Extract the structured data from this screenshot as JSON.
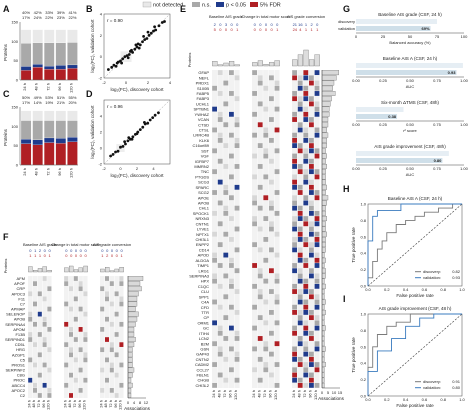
{
  "legend": {
    "items": [
      {
        "label": "not detected",
        "color": "#e9e9e9"
      },
      {
        "label": "n.s.",
        "color": "#a9a9a9"
      },
      {
        "label": "p < 0.05",
        "color": "#1f3b8c"
      },
      {
        "label": "5% FDR",
        "color": "#b01f24"
      }
    ]
  },
  "panel_labels": [
    "A",
    "B",
    "C",
    "D",
    "E",
    "F",
    "G",
    "H",
    "I"
  ],
  "colors": {
    "not_detected": "#e9e9e9",
    "ns": "#a9a9a9",
    "p05": "#1f3b8c",
    "fdr": "#b01f24",
    "grid": "#f2f2f2"
  },
  "A": {
    "ylabel": "Proteins",
    "yticks": [
      "0",
      "50",
      "100",
      "150"
    ],
    "categories": [
      "24 h",
      "48 h",
      "72 h",
      "96 h",
      "120 h"
    ],
    "pct_top": [
      "40%",
      "42%",
      "33%",
      "39%",
      "41%"
    ],
    "pct_bottom": [
      "17%",
      "24%",
      "22%",
      "23%",
      "22%"
    ],
    "ymax": 150,
    "stacks": [
      {
        "fdr": 25,
        "p05": 10,
        "ns": 60,
        "nd": 35
      },
      {
        "fdr": 33,
        "p05": 8,
        "ns": 55,
        "nd": 34
      },
      {
        "fdr": 28,
        "p05": 8,
        "ns": 60,
        "nd": 34
      },
      {
        "fdr": 28,
        "p05": 10,
        "ns": 58,
        "nd": 34
      },
      {
        "fdr": 30,
        "p05": 9,
        "ns": 58,
        "nd": 33
      }
    ]
  },
  "C": {
    "ylabel": "Proteins",
    "yticks": [
      "0",
      "50",
      "100",
      "150"
    ],
    "categories": [
      "24 h",
      "48 h",
      "72 h",
      "96 h",
      "120 h"
    ],
    "pct_top": [
      "50%",
      "49%",
      "53%",
      "51%",
      "55%"
    ],
    "pct_bottom": [
      "17%",
      "14%",
      "19%",
      "21%",
      "20%"
    ],
    "ymax": 150,
    "stacks": [
      {
        "fdr": 55,
        "p05": 12,
        "ns": 48,
        "nd": 25
      },
      {
        "fdr": 52,
        "p05": 13,
        "ns": 50,
        "nd": 25
      },
      {
        "fdr": 58,
        "p05": 12,
        "ns": 45,
        "nd": 25
      },
      {
        "fdr": 56,
        "p05": 13,
        "ns": 46,
        "nd": 25
      },
      {
        "fdr": 60,
        "p05": 12,
        "ns": 43,
        "nd": 25
      }
    ]
  },
  "B": {
    "r_label": "r = 0.90",
    "xlabel": "log₂(FC), discovery cohort",
    "ylabel": "log₂(FC), validation cohort",
    "xlim": [
      -2,
      4
    ],
    "ylim": [
      -2,
      4
    ],
    "ticks": [
      "-2",
      "0",
      "2",
      "4"
    ],
    "points": [
      [
        -1.6,
        -1.2
      ],
      [
        -1.3,
        -1.0
      ],
      [
        -1.1,
        -0.8
      ],
      [
        -0.9,
        -0.9
      ],
      [
        -0.7,
        -0.5
      ],
      [
        -0.5,
        -0.4
      ],
      [
        -0.3,
        -0.2
      ],
      [
        -0.1,
        0.0
      ],
      [
        0.1,
        0.1
      ],
      [
        0.3,
        0.2
      ],
      [
        0.4,
        0.5
      ],
      [
        0.6,
        0.4
      ],
      [
        0.8,
        0.7
      ],
      [
        1.0,
        0.9
      ],
      [
        1.1,
        1.2
      ],
      [
        1.3,
        1.1
      ],
      [
        1.5,
        1.4
      ],
      [
        1.7,
        1.6
      ],
      [
        1.9,
        1.7
      ],
      [
        2.1,
        2.0
      ],
      [
        2.3,
        2.2
      ],
      [
        2.5,
        2.4
      ],
      [
        2.7,
        2.5
      ],
      [
        3.0,
        2.9
      ],
      [
        3.3,
        3.2
      ],
      [
        0.2,
        -0.1
      ],
      [
        0.5,
        0.6
      ],
      [
        0.9,
        1.1
      ],
      [
        1.2,
        0.8
      ],
      [
        1.6,
        1.9
      ],
      [
        -0.4,
        -0.6
      ],
      [
        -0.8,
        -0.6
      ],
      [
        2.0,
        2.3
      ],
      [
        2.6,
        2.8
      ],
      [
        3.5,
        3.3
      ]
    ]
  },
  "D": {
    "r_label": "r = 0.96",
    "xlabel": "log₂(FC), discovery cohort",
    "ylabel": "log₂(FC), validation cohort",
    "xlim": [
      -2,
      6
    ],
    "ylim": [
      -2,
      6
    ],
    "ticks": [
      "-2",
      "0",
      "2",
      "4"
    ],
    "points": [
      [
        -1.2,
        -1.0
      ],
      [
        -0.9,
        -0.8
      ],
      [
        -0.6,
        -0.5
      ],
      [
        -0.3,
        -0.4
      ],
      [
        0.0,
        0.1
      ],
      [
        0.3,
        0.2
      ],
      [
        0.6,
        0.5
      ],
      [
        0.9,
        0.9
      ],
      [
        1.2,
        1.1
      ],
      [
        1.5,
        1.4
      ],
      [
        1.8,
        1.7
      ],
      [
        2.1,
        2.0
      ],
      [
        2.4,
        2.3
      ],
      [
        2.7,
        2.6
      ],
      [
        3.0,
        3.0
      ],
      [
        3.3,
        3.1
      ],
      [
        3.6,
        3.5
      ],
      [
        3.9,
        3.8
      ],
      [
        4.2,
        4.1
      ],
      [
        4.6,
        4.4
      ],
      [
        1.0,
        1.3
      ],
      [
        2.0,
        1.8
      ],
      [
        2.9,
        3.2
      ],
      [
        1.4,
        1.1
      ],
      [
        0.5,
        0.8
      ]
    ]
  },
  "E": {
    "ylabel": "Proteins",
    "xlabel": "Associations",
    "groups": [
      {
        "title": "Baseline AIS grade",
        "counts_top": [
          "2",
          "0",
          "3",
          "0",
          "0"
        ],
        "counts_bottom": [
          "5",
          "0",
          "0",
          "0",
          "1"
        ]
      },
      {
        "title": "Change in total motor score",
        "counts_top": [
          "0",
          "0",
          "0",
          "0",
          "0"
        ],
        "counts_bottom": [
          "0",
          "0",
          "0",
          "0",
          "1"
        ]
      },
      {
        "title": "AIS grade conversion",
        "counts_top": [
          "21",
          "16",
          "1",
          "2",
          "0"
        ],
        "counts_bottom": [
          "24",
          "4",
          "1",
          "1",
          "1"
        ]
      }
    ],
    "timepoints": [
      "24 h",
      "48 h",
      "72 h",
      "96 h",
      "120 h"
    ],
    "assoc_ticks": [
      "0",
      "5",
      "10",
      "15"
    ],
    "proteins": [
      "GFAP",
      "NEFL",
      "PRDX1",
      "S100B",
      "FABP5",
      "FABP3",
      "UCHL1",
      "SPTBN1",
      "YWHAZ",
      "VCAN",
      "CTSD",
      "CTSL",
      "LRRC4B",
      "KLK6",
      "C16orf89",
      "SST",
      "VGF",
      "IGFBP7",
      "MMRN2",
      "TNC",
      "PTGDS",
      "SCG3",
      "SPARC",
      "SCG2",
      "APOE",
      "APOB",
      "CHL1",
      "SPOCK1",
      "NRXN3",
      "CNTN1",
      "LYVE1",
      "NPTX1",
      "CHI3L1",
      "ENPP2",
      "CD14",
      "APOD",
      "ALDOA",
      "TIMP1",
      "LRG1",
      "SERPINA3",
      "HPX",
      "C1QC",
      "CLU",
      "SPP1",
      "C4A",
      "CFD",
      "TTR",
      "CP",
      "ORM1",
      "GC",
      "ITIH4",
      "LCN2",
      "B2M",
      "GSN",
      "GAP43",
      "CNTN2",
      "CADM2",
      "CCL27",
      "FBLN1",
      "CHGB",
      "CHI3L2"
    ],
    "assoc": [
      14,
      12,
      10,
      9,
      11,
      8,
      7,
      6,
      6,
      5,
      5,
      4,
      5,
      4,
      4,
      3,
      4,
      3,
      4,
      3,
      3,
      3,
      4,
      3,
      5,
      4,
      3,
      3,
      4,
      3,
      3,
      4,
      3,
      3,
      3,
      2,
      3,
      2,
      3,
      3,
      2,
      3,
      2,
      2,
      3,
      2,
      3,
      2,
      2,
      3,
      2,
      2,
      2,
      3,
      2,
      2,
      3,
      2,
      2,
      2,
      2
    ]
  },
  "F": {
    "ylabel": "Proteins",
    "xlabel": "Associations",
    "groups": [
      {
        "title": "Baseline AIS grade",
        "counts_top": [
          "0",
          "1",
          "2",
          "0",
          "0"
        ],
        "counts_bottom": [
          "1",
          "1",
          "1",
          "0",
          "1"
        ]
      },
      {
        "title": "Change in total motor score",
        "counts_top": [
          "0",
          "0",
          "0",
          "0",
          "0"
        ],
        "counts_bottom": [
          "0",
          "0",
          "0",
          "0",
          "0"
        ]
      },
      {
        "title": "AIS grade conversion",
        "counts_top": [
          "0",
          "0",
          "0",
          "0",
          "0"
        ],
        "counts_bottom": [
          "1",
          "2",
          "0",
          "0",
          "1"
        ]
      }
    ],
    "timepoints": [
      "24 h",
      "48 h",
      "72 h",
      "96 h",
      "120 h"
    ],
    "assoc_ticks": [
      "0",
      "4",
      "8",
      "12"
    ],
    "hist_ticks": [
      "0",
      "20",
      "40"
    ],
    "proteins": [
      "AFM",
      "APOF",
      "CRP",
      "APOC3",
      "F11",
      "C7",
      "APMAP",
      "SELENOP",
      "APOB",
      "SERPINA4",
      "APOM",
      "F13B",
      "SERPIND1",
      "CD5L",
      "HRG",
      "AZGP1",
      "C5",
      "PROS1",
      "SERPINF2",
      "C8G",
      "PROC",
      "ABCC4",
      "APOC2",
      "C2"
    ],
    "assoc": [
      10,
      8,
      9,
      7,
      6,
      6,
      5,
      7,
      6,
      5,
      4,
      4,
      5,
      4,
      3,
      3,
      3,
      3,
      4,
      3,
      2,
      3,
      2,
      2
    ]
  },
  "G": {
    "sections": [
      {
        "title": "Baseline AIS grade (CSF, 24 h)",
        "disc_label": "discovery",
        "val_label": "validation",
        "value_text": "69%",
        "value": 0.69,
        "axis_label": "Balanced accuracy (%)",
        "ticks": [
          "0",
          "25",
          "50",
          "75",
          "100"
        ]
      },
      {
        "title": "Baseline AIS A (CSF, 24 h)",
        "value_text": "0.93",
        "value": 0.93,
        "axis_label": "AUC",
        "ticks": [
          "0.00",
          "0.25",
          "0.50",
          "0.75",
          "1.00"
        ]
      },
      {
        "title": "Six-month ΔTMS (CSF, 48h)",
        "value_text": "0.38",
        "value": 0.38,
        "axis_label": "r² score",
        "ticks": [
          "0.00",
          "0.25",
          "0.50",
          "0.75",
          "1.00"
        ]
      },
      {
        "title": "AIS grade improvement (CSF, 48h)",
        "value_text": "0.80",
        "value": 0.8,
        "axis_label": "AUC",
        "ticks": [
          "0.00",
          "0.25",
          "0.50",
          "0.75",
          "1.00"
        ]
      }
    ]
  },
  "H": {
    "title": "Baseline AIS A (CSF, 24 h)",
    "xlabel": "False positive rate",
    "ylabel": "True positive rate",
    "ticks": [
      "0.0",
      "0.2",
      "0.4",
      "0.6",
      "0.8",
      "1.0"
    ],
    "legend": [
      {
        "label": "discovery:",
        "value": "0.82",
        "color": "#7a7a7a"
      },
      {
        "label": "validation:",
        "value": "0.93",
        "color": "#3a7bbf"
      }
    ],
    "curves": {
      "discovery": [
        [
          0,
          0
        ],
        [
          0,
          0.1
        ],
        [
          0.05,
          0.1
        ],
        [
          0.05,
          0.3
        ],
        [
          0.1,
          0.3
        ],
        [
          0.1,
          0.45
        ],
        [
          0.15,
          0.45
        ],
        [
          0.15,
          0.55
        ],
        [
          0.2,
          0.55
        ],
        [
          0.2,
          0.65
        ],
        [
          0.3,
          0.65
        ],
        [
          0.3,
          0.75
        ],
        [
          0.4,
          0.75
        ],
        [
          0.4,
          0.8
        ],
        [
          0.5,
          0.8
        ],
        [
          0.5,
          0.85
        ],
        [
          0.6,
          0.85
        ],
        [
          0.6,
          0.9
        ],
        [
          0.75,
          0.9
        ],
        [
          0.75,
          0.95
        ],
        [
          0.9,
          0.95
        ],
        [
          0.9,
          1
        ],
        [
          1,
          1
        ]
      ],
      "validation": [
        [
          0,
          0
        ],
        [
          0,
          0.55
        ],
        [
          0.05,
          0.55
        ],
        [
          0.05,
          0.85
        ],
        [
          0.1,
          0.85
        ],
        [
          0.1,
          0.92
        ],
        [
          0.35,
          0.92
        ],
        [
          0.35,
          1
        ],
        [
          1,
          1
        ]
      ]
    }
  },
  "I": {
    "title": "AIS grade improvement (CSF, 48 h)",
    "xlabel": "False positive rate",
    "ylabel": "True positive rate",
    "ticks": [
      "0.0",
      "0.2",
      "0.4",
      "0.6",
      "0.8",
      "1.0"
    ],
    "legend": [
      {
        "label": "discovery:",
        "value": "0.91",
        "color": "#7a7a7a"
      },
      {
        "label": "validation:",
        "value": "0.80",
        "color": "#3a7bbf"
      }
    ],
    "curves": {
      "discovery": [
        [
          0,
          0
        ],
        [
          0,
          0.35
        ],
        [
          0.05,
          0.35
        ],
        [
          0.05,
          0.6
        ],
        [
          0.1,
          0.6
        ],
        [
          0.1,
          0.75
        ],
        [
          0.2,
          0.75
        ],
        [
          0.2,
          0.85
        ],
        [
          0.3,
          0.85
        ],
        [
          0.3,
          0.9
        ],
        [
          0.45,
          0.9
        ],
        [
          0.45,
          1
        ],
        [
          1,
          1
        ]
      ],
      "validation": [
        [
          0,
          0
        ],
        [
          0,
          0.3
        ],
        [
          0.1,
          0.3
        ],
        [
          0.1,
          0.55
        ],
        [
          0.25,
          0.55
        ],
        [
          0.25,
          0.7
        ],
        [
          0.4,
          0.7
        ],
        [
          0.4,
          0.85
        ],
        [
          0.55,
          0.85
        ],
        [
          0.55,
          0.95
        ],
        [
          0.7,
          0.95
        ],
        [
          0.7,
          1
        ],
        [
          1,
          1
        ]
      ]
    }
  }
}
